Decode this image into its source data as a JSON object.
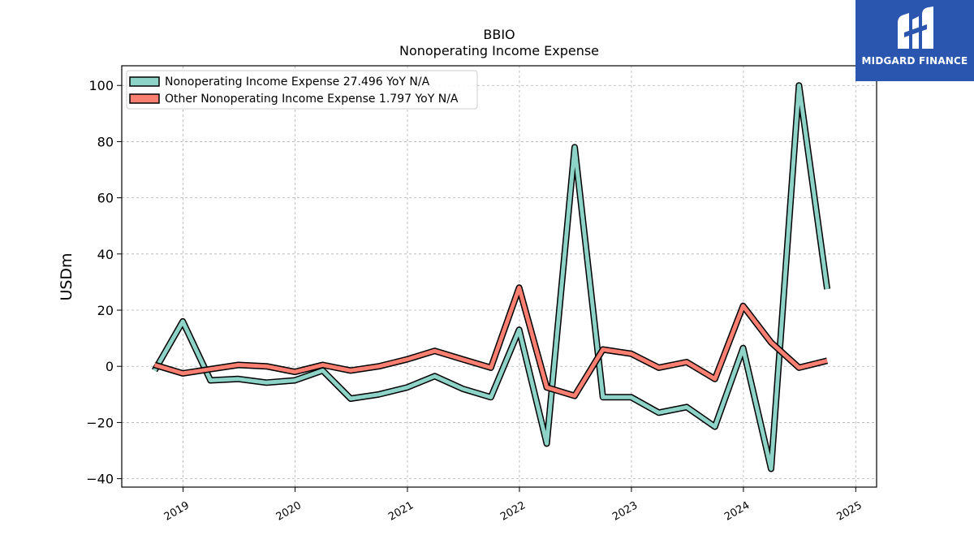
{
  "chart_data": {
    "type": "line",
    "title": "BBIO",
    "subtitle": "Nonoperating Income Expense",
    "ylabel": "USDm",
    "xlabel": "",
    "ylim": [
      -43,
      107
    ],
    "xlim": [
      "2018-06-15",
      "2025-03-10"
    ],
    "y_ticks": [
      -40,
      -20,
      0,
      20,
      40,
      60,
      80,
      100
    ],
    "y_tick_labels": [
      "−40",
      "−20",
      "0",
      "20",
      "40",
      "60",
      "80",
      "100"
    ],
    "x_ticks": [
      "2019-01-01",
      "2020-01-01",
      "2021-01-01",
      "2022-01-01",
      "2023-01-01",
      "2024-01-01",
      "2025-01-01"
    ],
    "x_tick_labels": [
      "2019",
      "2020",
      "2021",
      "2022",
      "2023",
      "2024",
      "2025"
    ],
    "grid": true,
    "legend_position": "top-left",
    "x": [
      "2018-09-30",
      "2018-12-31",
      "2019-03-31",
      "2019-06-30",
      "2019-09-30",
      "2019-12-31",
      "2020-03-31",
      "2020-06-30",
      "2020-09-30",
      "2020-12-31",
      "2021-03-31",
      "2021-06-30",
      "2021-09-30",
      "2021-12-31",
      "2022-03-31",
      "2022-06-30",
      "2022-09-30",
      "2022-12-31",
      "2023-03-31",
      "2023-06-30",
      "2023-09-30",
      "2023-12-31",
      "2024-03-31",
      "2024-06-30",
      "2024-09-30"
    ],
    "series": [
      {
        "name": "Nonoperating Income Expense",
        "legend_label": "Nonoperating Income Expense  27.496 YoY N/A",
        "color": "#8dd3c7",
        "values": [
          -1.5,
          16.0,
          -5.0,
          -4.5,
          -5.8,
          -5.0,
          -1.5,
          -11.5,
          -10.0,
          -7.5,
          -3.5,
          -8.0,
          -11.0,
          13.0,
          -27.5,
          78.0,
          -11.0,
          -11.0,
          -16.5,
          -14.5,
          -21.5,
          6.5,
          -36.5,
          100.0,
          27.5
        ]
      },
      {
        "name": "Other Nonoperating Income Expense",
        "legend_label": "Other Nonoperating Income Expense  1.797 YoY N/A",
        "color": "#fb8072",
        "values": [
          0.5,
          -2.5,
          -1.0,
          0.5,
          0.0,
          -2.0,
          0.5,
          -1.5,
          0.0,
          2.5,
          5.5,
          2.5,
          -0.5,
          28.0,
          -7.5,
          -10.5,
          6.0,
          4.5,
          -0.5,
          1.5,
          -4.5,
          21.5,
          8.5,
          -0.5,
          2.0
        ]
      }
    ]
  },
  "brand": {
    "name": "MIDGARD FINANCE",
    "color": "#2a56b0"
  }
}
